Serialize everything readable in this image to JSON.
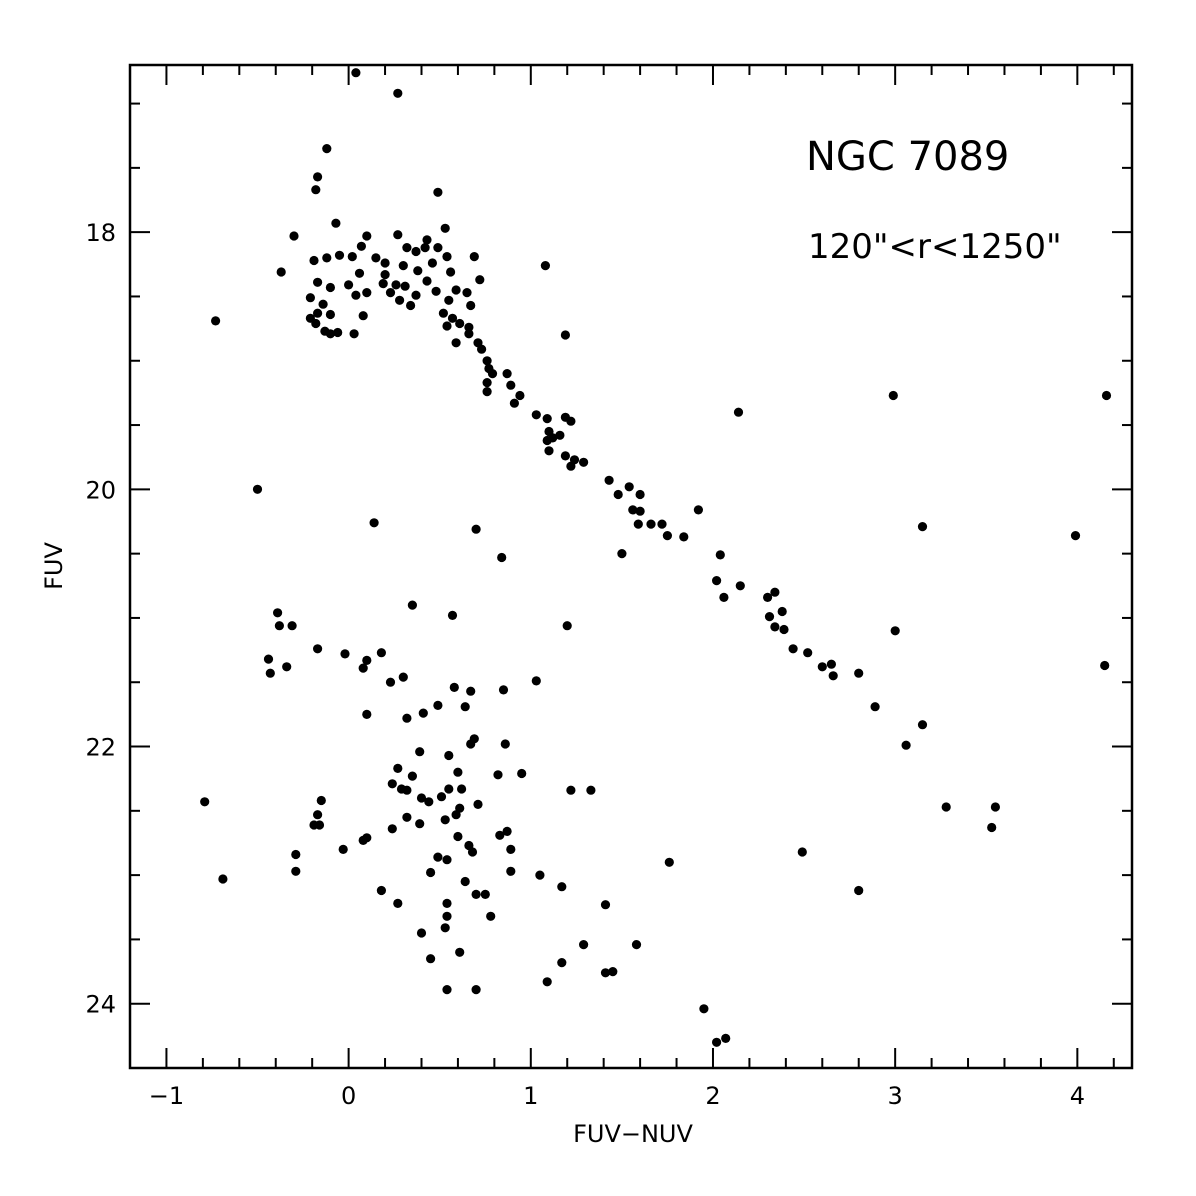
{
  "chart_data": {
    "type": "scatter",
    "xlabel": "FUV−NUV",
    "ylabel": "FUV",
    "xlim": [
      -1.2,
      4.3
    ],
    "ylim": [
      24.5,
      16.7
    ],
    "y_inverted": true,
    "x_ticks": [
      {
        "value": -1,
        "label": "−1"
      },
      {
        "value": 0,
        "label": "0"
      },
      {
        "value": 1,
        "label": "1"
      },
      {
        "value": 2,
        "label": "2"
      },
      {
        "value": 3,
        "label": "3"
      },
      {
        "value": 4,
        "label": "4"
      }
    ],
    "y_ticks": [
      {
        "value": 18,
        "label": "18"
      },
      {
        "value": 20,
        "label": "20"
      },
      {
        "value": 22,
        "label": "22"
      },
      {
        "value": 24,
        "label": "24"
      }
    ],
    "annotations": [
      "NGC 7089",
      "120\"<r<1250\""
    ],
    "grid": false,
    "marker_color": "#000000",
    "points": [
      [
        0.04,
        16.76
      ],
      [
        0.27,
        16.92
      ],
      [
        -0.12,
        17.35
      ],
      [
        -0.17,
        17.57
      ],
      [
        -0.18,
        17.67
      ],
      [
        0.49,
        17.69
      ],
      [
        -0.07,
        17.93
      ],
      [
        0.53,
        17.97
      ],
      [
        -0.3,
        18.03
      ],
      [
        0.1,
        18.03
      ],
      [
        0.27,
        18.02
      ],
      [
        0.43,
        18.06
      ],
      [
        0.07,
        18.11
      ],
      [
        0.32,
        18.12
      ],
      [
        0.42,
        18.12
      ],
      [
        0.49,
        18.12
      ],
      [
        0.02,
        18.19
      ],
      [
        0.15,
        18.2
      ],
      [
        -0.19,
        18.22
      ],
      [
        0.37,
        18.15
      ],
      [
        0.54,
        18.19
      ],
      [
        0.69,
        18.19
      ],
      [
        -0.12,
        18.2
      ],
      [
        -0.05,
        18.18
      ],
      [
        0.2,
        18.24
      ],
      [
        0.3,
        18.26
      ],
      [
        0.46,
        18.24
      ],
      [
        1.08,
        18.26
      ],
      [
        -0.37,
        18.31
      ],
      [
        0.06,
        18.32
      ],
      [
        0.2,
        18.33
      ],
      [
        0.38,
        18.3
      ],
      [
        0.56,
        18.31
      ],
      [
        0.72,
        18.37
      ],
      [
        -0.17,
        18.39
      ],
      [
        0.0,
        18.41
      ],
      [
        0.19,
        18.4
      ],
      [
        0.26,
        18.41
      ],
      [
        0.43,
        18.38
      ],
      [
        -0.1,
        18.43
      ],
      [
        0.1,
        18.47
      ],
      [
        0.31,
        18.42
      ],
      [
        0.48,
        18.46
      ],
      [
        0.59,
        18.45
      ],
      [
        0.65,
        18.47
      ],
      [
        -0.21,
        18.51
      ],
      [
        0.04,
        18.49
      ],
      [
        0.23,
        18.47
      ],
      [
        0.37,
        18.49
      ],
      [
        0.55,
        18.53
      ],
      [
        -0.14,
        18.56
      ],
      [
        0.28,
        18.53
      ],
      [
        0.34,
        18.57
      ],
      [
        0.67,
        18.57
      ],
      [
        -0.17,
        18.63
      ],
      [
        0.08,
        18.65
      ],
      [
        0.52,
        18.63
      ],
      [
        -0.21,
        18.67
      ],
      [
        -0.1,
        18.64
      ],
      [
        0.57,
        18.67
      ],
      [
        -0.73,
        18.69
      ],
      [
        -0.18,
        18.71
      ],
      [
        0.54,
        18.73
      ],
      [
        0.61,
        18.71
      ],
      [
        0.66,
        18.74
      ],
      [
        -0.13,
        18.77
      ],
      [
        -0.1,
        18.79
      ],
      [
        0.03,
        18.79
      ],
      [
        -0.06,
        18.78
      ],
      [
        0.66,
        18.79
      ],
      [
        1.19,
        18.8
      ],
      [
        0.59,
        18.86
      ],
      [
        0.71,
        18.86
      ],
      [
        0.73,
        18.91
      ],
      [
        0.76,
        19.0
      ],
      [
        0.77,
        19.06
      ],
      [
        0.79,
        19.1
      ],
      [
        0.87,
        19.1
      ],
      [
        0.76,
        19.17
      ],
      [
        0.89,
        19.19
      ],
      [
        0.76,
        19.24
      ],
      [
        0.94,
        19.27
      ],
      [
        0.91,
        19.33
      ],
      [
        1.03,
        19.42
      ],
      [
        1.09,
        19.45
      ],
      [
        1.19,
        19.44
      ],
      [
        1.22,
        19.47
      ],
      [
        1.1,
        19.55
      ],
      [
        1.12,
        19.6
      ],
      [
        1.09,
        19.62
      ],
      [
        1.16,
        19.58
      ],
      [
        1.1,
        19.7
      ],
      [
        1.19,
        19.74
      ],
      [
        1.24,
        19.77
      ],
      [
        1.29,
        19.79
      ],
      [
        1.22,
        19.82
      ],
      [
        1.43,
        19.93
      ],
      [
        1.54,
        19.98
      ],
      [
        1.48,
        20.04
      ],
      [
        1.6,
        20.04
      ],
      [
        1.56,
        20.16
      ],
      [
        1.6,
        20.17
      ],
      [
        1.59,
        20.27
      ],
      [
        1.66,
        20.27
      ],
      [
        1.72,
        20.27
      ],
      [
        1.75,
        20.36
      ],
      [
        1.84,
        20.37
      ],
      [
        1.92,
        20.16
      ],
      [
        1.5,
        20.5
      ],
      [
        2.04,
        20.51
      ],
      [
        2.02,
        20.71
      ],
      [
        2.15,
        20.75
      ],
      [
        2.06,
        20.84
      ],
      [
        2.3,
        20.84
      ],
      [
        2.34,
        20.8
      ],
      [
        2.38,
        20.95
      ],
      [
        2.31,
        20.99
      ],
      [
        2.34,
        21.07
      ],
      [
        2.39,
        21.09
      ],
      [
        2.44,
        21.24
      ],
      [
        2.52,
        21.27
      ],
      [
        2.6,
        21.38
      ],
      [
        2.65,
        21.36
      ],
      [
        2.66,
        21.45
      ],
      [
        2.8,
        21.43
      ],
      [
        2.89,
        21.69
      ],
      [
        3.06,
        21.99
      ],
      [
        3.15,
        21.83
      ],
      [
        2.99,
        19.27
      ],
      [
        2.14,
        19.4
      ],
      [
        4.16,
        19.27
      ],
      [
        3.15,
        20.29
      ],
      [
        3.99,
        20.36
      ],
      [
        3.0,
        21.1
      ],
      [
        4.15,
        21.37
      ],
      [
        3.28,
        22.47
      ],
      [
        3.55,
        22.47
      ],
      [
        3.53,
        22.63
      ],
      [
        2.49,
        22.82
      ],
      [
        2.8,
        23.12
      ],
      [
        1.95,
        24.04
      ],
      [
        2.02,
        24.3
      ],
      [
        2.07,
        24.27
      ],
      [
        -0.5,
        20.0
      ],
      [
        0.14,
        20.26
      ],
      [
        0.7,
        20.31
      ],
      [
        0.84,
        20.53
      ],
      [
        -0.39,
        20.96
      ],
      [
        -0.38,
        21.06
      ],
      [
        -0.31,
        21.06
      ],
      [
        0.35,
        20.9
      ],
      [
        0.57,
        20.98
      ],
      [
        1.2,
        21.06
      ],
      [
        -0.17,
        21.24
      ],
      [
        -0.02,
        21.28
      ],
      [
        0.1,
        21.33
      ],
      [
        0.18,
        21.27
      ],
      [
        -0.44,
        21.32
      ],
      [
        -0.43,
        21.43
      ],
      [
        -0.34,
        21.38
      ],
      [
        0.08,
        21.39
      ],
      [
        0.23,
        21.5
      ],
      [
        0.3,
        21.46
      ],
      [
        1.03,
        21.49
      ],
      [
        0.58,
        21.54
      ],
      [
        0.67,
        21.57
      ],
      [
        0.85,
        21.56
      ],
      [
        0.49,
        21.68
      ],
      [
        0.64,
        21.69
      ],
      [
        0.41,
        21.74
      ],
      [
        0.1,
        21.75
      ],
      [
        0.32,
        21.78
      ],
      [
        0.69,
        21.94
      ],
      [
        0.67,
        21.98
      ],
      [
        0.86,
        21.98
      ],
      [
        0.39,
        22.04
      ],
      [
        0.55,
        22.07
      ],
      [
        0.27,
        22.17
      ],
      [
        0.35,
        22.23
      ],
      [
        0.6,
        22.2
      ],
      [
        0.82,
        22.22
      ],
      [
        0.95,
        22.21
      ],
      [
        -0.79,
        22.43
      ],
      [
        -0.15,
        22.42
      ],
      [
        0.24,
        22.29
      ],
      [
        0.29,
        22.33
      ],
      [
        0.32,
        22.34
      ],
      [
        0.55,
        22.33
      ],
      [
        0.62,
        22.33
      ],
      [
        0.4,
        22.4
      ],
      [
        0.44,
        22.43
      ],
      [
        0.51,
        22.39
      ],
      [
        0.61,
        22.48
      ],
      [
        0.71,
        22.45
      ],
      [
        1.22,
        22.34
      ],
      [
        1.33,
        22.34
      ],
      [
        -0.17,
        22.53
      ],
      [
        -0.19,
        22.61
      ],
      [
        -0.16,
        22.61
      ],
      [
        0.32,
        22.55
      ],
      [
        0.53,
        22.57
      ],
      [
        0.59,
        22.53
      ],
      [
        0.24,
        22.64
      ],
      [
        0.39,
        22.6
      ],
      [
        0.83,
        22.69
      ],
      [
        0.87,
        22.66
      ],
      [
        0.08,
        22.73
      ],
      [
        0.1,
        22.71
      ],
      [
        0.6,
        22.7
      ],
      [
        -0.29,
        22.84
      ],
      [
        -0.03,
        22.8
      ],
      [
        0.66,
        22.77
      ],
      [
        0.68,
        22.82
      ],
      [
        0.89,
        22.8
      ],
      [
        0.49,
        22.86
      ],
      [
        0.54,
        22.88
      ],
      [
        1.76,
        22.9
      ],
      [
        -0.29,
        22.97
      ],
      [
        0.45,
        22.98
      ],
      [
        0.89,
        22.97
      ],
      [
        1.05,
        23.0
      ],
      [
        -0.69,
        23.03
      ],
      [
        0.64,
        23.05
      ],
      [
        0.7,
        23.15
      ],
      [
        0.75,
        23.15
      ],
      [
        1.17,
        23.09
      ],
      [
        0.18,
        23.12
      ],
      [
        0.27,
        23.22
      ],
      [
        0.54,
        23.22
      ],
      [
        1.41,
        23.23
      ],
      [
        0.54,
        23.32
      ],
      [
        0.78,
        23.32
      ],
      [
        0.53,
        23.41
      ],
      [
        0.4,
        23.45
      ],
      [
        1.29,
        23.54
      ],
      [
        1.58,
        23.54
      ],
      [
        0.61,
        23.6
      ],
      [
        0.45,
        23.65
      ],
      [
        1.17,
        23.68
      ],
      [
        1.41,
        23.76
      ],
      [
        1.45,
        23.75
      ],
      [
        1.09,
        23.83
      ],
      [
        0.54,
        23.89
      ],
      [
        0.7,
        23.89
      ]
    ]
  }
}
